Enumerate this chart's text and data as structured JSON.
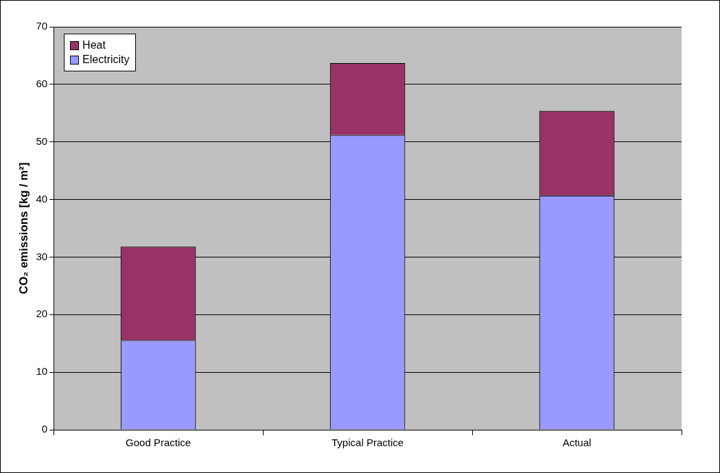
{
  "chart_data": {
    "type": "bar",
    "stacked": true,
    "ylabel": "CO₂ emissions [kg / m²]",
    "categories": [
      "Good Practice",
      "Typical Practice",
      "Actual"
    ],
    "series": [
      {
        "name": "Electricity",
        "color": "#9999ff",
        "values": [
          15.6,
          51.2,
          40.7
        ]
      },
      {
        "name": "Heat",
        "color": "#993366",
        "values": [
          16.2,
          12.5,
          14.7
        ]
      }
    ],
    "ylim": [
      0,
      70
    ],
    "yticks": [
      0,
      10,
      20,
      30,
      40,
      50,
      60,
      70
    ],
    "grid": "y",
    "legend": "top left"
  }
}
